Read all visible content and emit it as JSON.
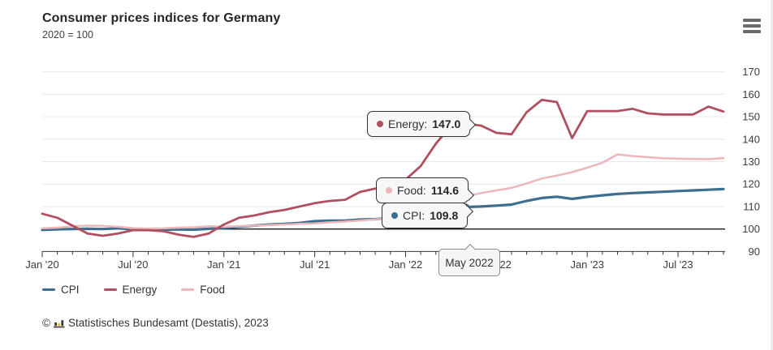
{
  "header": {
    "title": "Consumer prices indices for Germany",
    "subtitle": "2020 = 100"
  },
  "chart_data": {
    "type": "line",
    "title": "Consumer prices indices for Germany",
    "subtitle": "2020 = 100",
    "ylim": [
      90,
      170
    ],
    "ytick_step": 10,
    "baseline_value": 100,
    "grid": true,
    "legend_position": "bottom-left",
    "yaxis_side": "right",
    "highlight_index": 28,
    "highlight_label": "May 2022",
    "x_months": [
      "Jan '20",
      "Feb '20",
      "Mar '20",
      "Apr '20",
      "May '20",
      "Jun '20",
      "Jul '20",
      "Aug '20",
      "Sep '20",
      "Oct '20",
      "Nov '20",
      "Dec '20",
      "Jan '21",
      "Feb '21",
      "Mar '21",
      "Apr '21",
      "May '21",
      "Jun '21",
      "Jul '21",
      "Aug '21",
      "Sep '21",
      "Oct '21",
      "Nov '21",
      "Dec '21",
      "Jan '22",
      "Feb '22",
      "Mar '22",
      "Apr '22",
      "May '22",
      "Jun '22",
      "Jul '22",
      "Aug '22",
      "Sep '22",
      "Oct '22",
      "Nov '22",
      "Dec '22",
      "Jan '23",
      "Feb '23",
      "Mar '23",
      "Apr '23",
      "May '23",
      "Jun '23",
      "Jul '23",
      "Aug '23",
      "Sep '23",
      "Oct '23"
    ],
    "xticks": [
      {
        "index": 0,
        "label": "Jan '20"
      },
      {
        "index": 6,
        "label": "Jul '20"
      },
      {
        "index": 12,
        "label": "Jan '21"
      },
      {
        "index": 18,
        "label": "Jul '21"
      },
      {
        "index": 24,
        "label": "Jan '22"
      },
      {
        "index": 30,
        "label": "Jul '22"
      },
      {
        "index": 36,
        "label": "Jan '23"
      },
      {
        "index": 42,
        "label": "Jul '23"
      }
    ],
    "series": [
      {
        "name": "CPI",
        "color": "#3d6e8f",
        "values": [
          99.6,
          99.9,
          100.0,
          100.1,
          100.0,
          100.3,
          99.9,
          99.8,
          99.7,
          99.8,
          99.7,
          100.1,
          100.5,
          101.0,
          101.5,
          102.0,
          102.3,
          102.7,
          103.5,
          103.7,
          103.7,
          104.2,
          104.4,
          104.9,
          105.2,
          106.4,
          108.3,
          109.3,
          109.8,
          110.0,
          110.4,
          110.9,
          112.5,
          113.8,
          114.4,
          113.4,
          114.3,
          115.0,
          115.6,
          116.0,
          116.3,
          116.6,
          116.9,
          117.2,
          117.5,
          117.8
        ]
      },
      {
        "name": "Energy",
        "color": "#b04f5f",
        "values": [
          106.8,
          105.0,
          101.5,
          98.0,
          97.0,
          98.0,
          99.5,
          99.5,
          99.0,
          97.5,
          96.5,
          98.0,
          102.0,
          105.0,
          106.0,
          107.5,
          108.5,
          110.0,
          111.5,
          112.5,
          113.0,
          116.5,
          118.0,
          119.0,
          122.0,
          128.0,
          138.0,
          146.0,
          147.0,
          146.0,
          142.8,
          142.2,
          152.0,
          157.5,
          156.5,
          140.5,
          152.5,
          152.5,
          152.5,
          153.5,
          151.5,
          151.0,
          151.0,
          151.0,
          154.5,
          152.3
        ]
      },
      {
        "name": "Food",
        "color": "#ecb6bb",
        "values": [
          100.3,
          100.6,
          101.2,
          101.5,
          101.4,
          101.0,
          100.4,
          100.2,
          100.3,
          100.6,
          100.8,
          101.2,
          101.0,
          101.3,
          101.5,
          101.8,
          102.0,
          102.3,
          102.5,
          103.0,
          103.3,
          103.8,
          104.3,
          104.8,
          105.5,
          107.0,
          109.5,
          112.0,
          114.6,
          116.0,
          117.2,
          118.3,
          120.3,
          122.5,
          123.8,
          125.3,
          127.3,
          129.5,
          133.2,
          132.5,
          132.0,
          131.5,
          131.3,
          131.2,
          131.1,
          131.6
        ]
      }
    ]
  },
  "tooltips": {
    "energy": {
      "label": "Energy:",
      "value": "147.0"
    },
    "food": {
      "label": "Food:",
      "value": "114.6"
    },
    "cpi": {
      "label": "CPI:",
      "value": "109.8"
    },
    "x_label": "May 2022"
  },
  "legend": {
    "items": [
      {
        "label": "CPI"
      },
      {
        "label": "Energy"
      },
      {
        "label": "Food"
      }
    ]
  },
  "footer": {
    "copyright": "©",
    "logo_icon": "destatis-bars-icon",
    "credit": "Statistisches Bundesamt (Destatis), 2023"
  }
}
